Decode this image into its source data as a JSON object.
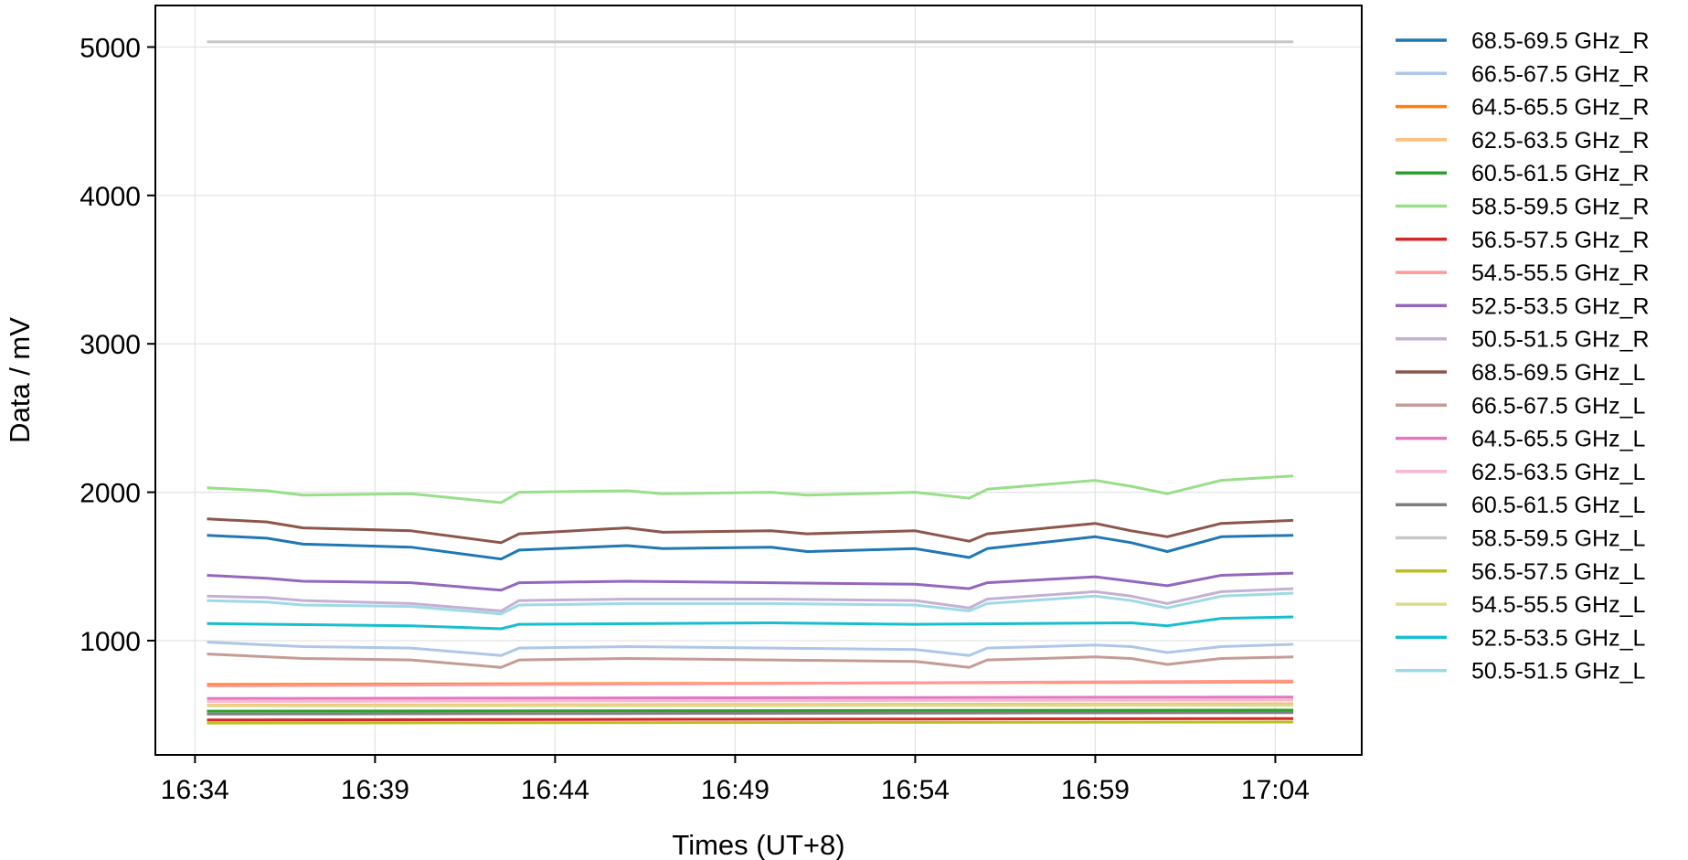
{
  "chart_data": {
    "type": "line",
    "xlabel": "Times (UT+8)",
    "ylabel": "Data / mV",
    "xlim": [
      "16:32:54",
      "17:06:24"
    ],
    "ylim": [
      230,
      5280
    ],
    "x_ticks": [
      "16:34",
      "16:39",
      "16:44",
      "16:49",
      "16:54",
      "16:59",
      "17:04"
    ],
    "y_ticks": [
      1000,
      2000,
      3000,
      4000,
      5000
    ],
    "grid": true,
    "legend_position": "outside-right",
    "series": [
      {
        "name": "68.5-69.5 GHz_R",
        "color": "#1f77b4",
        "x": [
          "16:34:20",
          "16:36:00",
          "16:37:00",
          "16:40:00",
          "16:42:30",
          "16:43:00",
          "16:46:00",
          "16:47:00",
          "16:50:00",
          "16:51:00",
          "16:54:00",
          "16:55:30",
          "16:56:00",
          "16:59:00",
          "17:00:00",
          "17:01:00",
          "17:02:30",
          "17:04:30"
        ],
        "values": [
          1710,
          1690,
          1650,
          1630,
          1550,
          1610,
          1640,
          1620,
          1630,
          1600,
          1620,
          1560,
          1620,
          1700,
          1660,
          1600,
          1700,
          1710
        ]
      },
      {
        "name": "66.5-67.5 GHz_R",
        "color": "#aec7e8",
        "x": [
          "16:34:20",
          "16:37:00",
          "16:40:00",
          "16:42:30",
          "16:43:00",
          "16:46:00",
          "16:50:00",
          "16:54:00",
          "16:55:30",
          "16:56:00",
          "16:59:00",
          "17:00:00",
          "17:01:00",
          "17:02:30",
          "17:04:30"
        ],
        "values": [
          990,
          960,
          950,
          900,
          950,
          960,
          950,
          940,
          900,
          950,
          970,
          960,
          920,
          960,
          975
        ]
      },
      {
        "name": "64.5-65.5 GHz_R",
        "color": "#ff7f0e",
        "x": [
          "16:34:20",
          "16:49:00",
          "17:04:30"
        ],
        "values": [
          705,
          712,
          722
        ]
      },
      {
        "name": "62.5-63.5 GHz_R",
        "color": "#ffbb78",
        "x": [
          "16:34:20",
          "16:49:00",
          "17:04:30"
        ],
        "values": [
          565,
          570,
          575
        ]
      },
      {
        "name": "60.5-61.5 GHz_R",
        "color": "#2ca02c",
        "x": [
          "16:34:20",
          "16:49:00",
          "17:04:30"
        ],
        "values": [
          525,
          528,
          532
        ]
      },
      {
        "name": "58.5-59.5 GHz_R",
        "color": "#98df8a",
        "x": [
          "16:34:20",
          "16:36:00",
          "16:37:00",
          "16:40:00",
          "16:42:30",
          "16:43:00",
          "16:46:00",
          "16:47:00",
          "16:50:00",
          "16:51:00",
          "16:54:00",
          "16:55:30",
          "16:56:00",
          "16:59:00",
          "17:00:00",
          "17:01:00",
          "17:02:30",
          "17:04:30"
        ],
        "values": [
          2030,
          2010,
          1980,
          1990,
          1930,
          2000,
          2010,
          1990,
          2000,
          1980,
          2000,
          1960,
          2020,
          2080,
          2040,
          1990,
          2080,
          2110
        ]
      },
      {
        "name": "56.5-57.5 GHz_R",
        "color": "#d62728",
        "x": [
          "16:34:20",
          "16:49:00",
          "17:04:30"
        ],
        "values": [
          465,
          470,
          475
        ]
      },
      {
        "name": "54.5-55.5 GHz_R",
        "color": "#ff9896",
        "x": [
          "16:34:20",
          "16:49:00",
          "17:04:30"
        ],
        "values": [
          695,
          710,
          728
        ]
      },
      {
        "name": "52.5-53.5 GHz_R",
        "color": "#9467bd",
        "x": [
          "16:34:20",
          "16:36:00",
          "16:37:00",
          "16:40:00",
          "16:42:30",
          "16:43:00",
          "16:46:00",
          "16:50:00",
          "16:54:00",
          "16:55:30",
          "16:56:00",
          "16:59:00",
          "17:00:00",
          "17:01:00",
          "17:02:30",
          "17:04:30"
        ],
        "values": [
          1440,
          1420,
          1400,
          1390,
          1340,
          1390,
          1400,
          1390,
          1380,
          1350,
          1390,
          1430,
          1400,
          1370,
          1440,
          1455
        ]
      },
      {
        "name": "50.5-51.5 GHz_R",
        "color": "#c5b0d5",
        "x": [
          "16:34:20",
          "16:36:00",
          "16:37:00",
          "16:40:00",
          "16:42:30",
          "16:43:00",
          "16:46:00",
          "16:50:00",
          "16:54:00",
          "16:55:30",
          "16:56:00",
          "16:59:00",
          "17:00:00",
          "17:01:00",
          "17:02:30",
          "17:04:30"
        ],
        "values": [
          1300,
          1290,
          1270,
          1250,
          1200,
          1270,
          1280,
          1280,
          1270,
          1220,
          1280,
          1330,
          1300,
          1250,
          1330,
          1350
        ]
      },
      {
        "name": "68.5-69.5 GHz_L",
        "color": "#8c564b",
        "x": [
          "16:34:20",
          "16:36:00",
          "16:37:00",
          "16:40:00",
          "16:42:30",
          "16:43:00",
          "16:46:00",
          "16:47:00",
          "16:50:00",
          "16:51:00",
          "16:54:00",
          "16:55:30",
          "16:56:00",
          "16:59:00",
          "17:00:00",
          "17:01:00",
          "17:02:30",
          "17:04:30"
        ],
        "values": [
          1820,
          1800,
          1760,
          1740,
          1660,
          1720,
          1760,
          1730,
          1740,
          1720,
          1740,
          1670,
          1720,
          1790,
          1740,
          1700,
          1790,
          1810
        ]
      },
      {
        "name": "66.5-67.5 GHz_L",
        "color": "#c49c94",
        "x": [
          "16:34:20",
          "16:37:00",
          "16:40:00",
          "16:42:30",
          "16:43:00",
          "16:46:00",
          "16:50:00",
          "16:54:00",
          "16:55:30",
          "16:56:00",
          "16:59:00",
          "17:00:00",
          "17:01:00",
          "17:02:30",
          "17:04:30"
        ],
        "values": [
          910,
          880,
          870,
          820,
          870,
          880,
          870,
          860,
          820,
          870,
          890,
          880,
          840,
          880,
          890
        ]
      },
      {
        "name": "64.5-65.5 GHz_L",
        "color": "#e377c2",
        "x": [
          "16:34:20",
          "16:49:00",
          "17:04:30"
        ],
        "values": [
          610,
          615,
          620
        ]
      },
      {
        "name": "62.5-63.5 GHz_L",
        "color": "#f7b6d2",
        "x": [
          "16:34:20",
          "16:49:00",
          "17:04:30"
        ],
        "values": [
          590,
          595,
          600
        ]
      },
      {
        "name": "60.5-61.5 GHz_L",
        "color": "#7f7f7f",
        "x": [
          "16:34:20",
          "16:49:00",
          "17:04:30"
        ],
        "values": [
          505,
          510,
          515
        ]
      },
      {
        "name": "58.5-59.5 GHz_L",
        "color": "#c7c7c7",
        "x": [
          "16:34:20",
          "16:49:00",
          "17:04:30"
        ],
        "values": [
          5035,
          5035,
          5035
        ]
      },
      {
        "name": "56.5-57.5 GHz_L",
        "color": "#bcbd22",
        "x": [
          "16:34:20",
          "16:49:00",
          "17:04:30"
        ],
        "values": [
          445,
          448,
          452
        ]
      },
      {
        "name": "54.5-55.5 GHz_L",
        "color": "#dbdb8d",
        "x": [
          "16:34:20",
          "16:49:00",
          "17:04:30"
        ],
        "values": [
          560,
          562,
          565
        ]
      },
      {
        "name": "52.5-53.5 GHz_L",
        "color": "#17becf",
        "x": [
          "16:34:20",
          "16:40:00",
          "16:42:30",
          "16:43:00",
          "16:50:00",
          "16:54:00",
          "17:00:00",
          "17:01:00",
          "17:02:30",
          "17:04:30"
        ],
        "values": [
          1115,
          1100,
          1080,
          1110,
          1120,
          1110,
          1120,
          1100,
          1150,
          1160
        ]
      },
      {
        "name": "50.5-51.5 GHz_L",
        "color": "#9edae5",
        "x": [
          "16:34:20",
          "16:36:00",
          "16:37:00",
          "16:40:00",
          "16:42:30",
          "16:43:00",
          "16:46:00",
          "16:50:00",
          "16:54:00",
          "16:55:30",
          "16:56:00",
          "16:59:00",
          "17:00:00",
          "17:01:00",
          "17:02:30",
          "17:04:30"
        ],
        "values": [
          1270,
          1260,
          1240,
          1230,
          1180,
          1240,
          1250,
          1250,
          1240,
          1200,
          1250,
          1300,
          1270,
          1220,
          1300,
          1320
        ]
      }
    ]
  }
}
